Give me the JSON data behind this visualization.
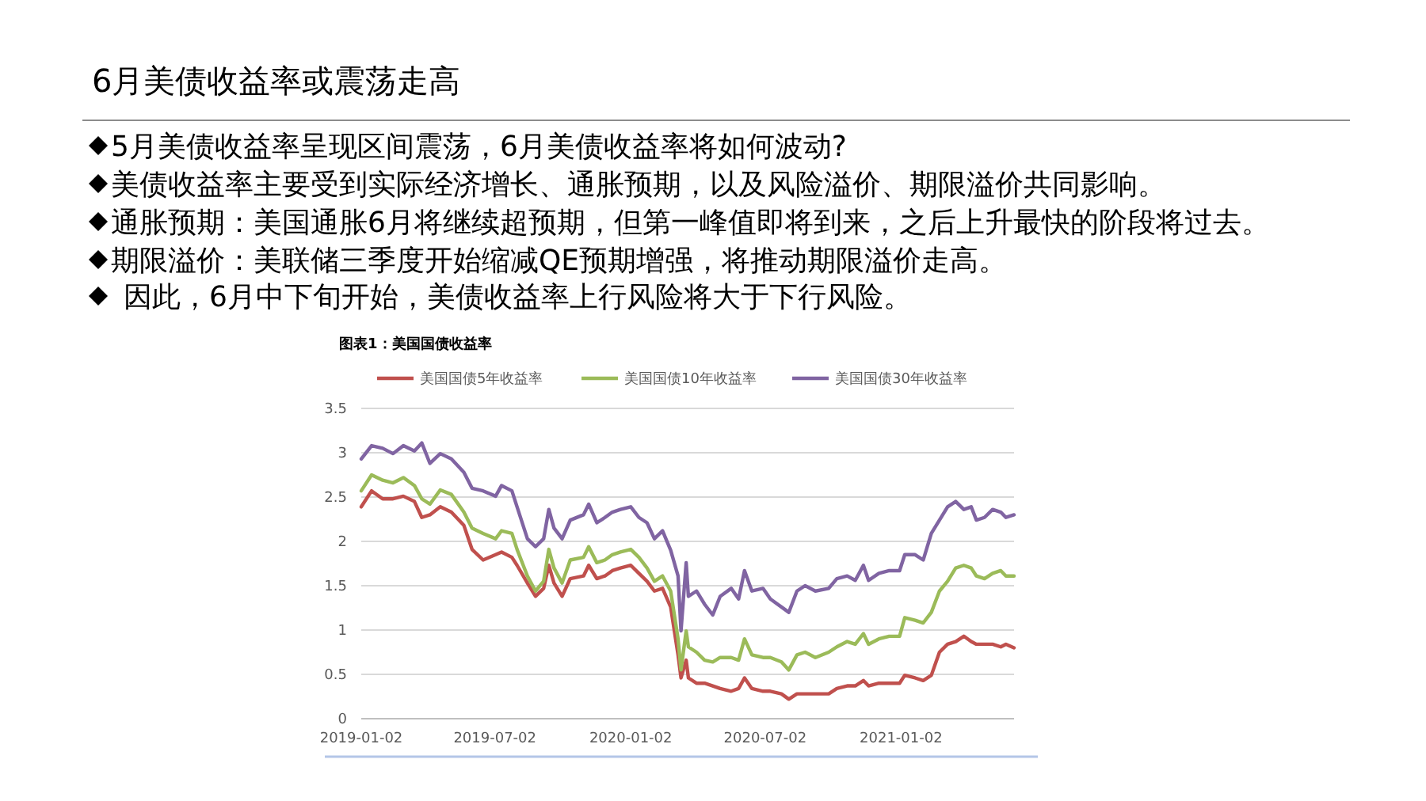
{
  "chart_data": {
    "type": "line",
    "title": "6月美债收益率或震荡走高",
    "subtitle": "图表1：美国国债收益率",
    "annotations": [
      "5月美债收益率呈现区间震荡，6月美债收益率将如何波动?",
      "美债收益率主要受到实际经济增长、通胀预期，以及风险溢价、期限溢价共同影响。",
      "通胀预期：美国通胀6月将继续超预期，但第一峰值即将到来，之后上升最快的阶段将过去。",
      "期限溢价：美联储三季度开始缩减QE预期增强，将推动期限溢价走高。",
      "因此，6月中下旬开始，美债收益率上行风险将大于下行风险。"
    ],
    "x": [
      "2019-01-02",
      "2019-01-16",
      "2019-01-31",
      "2019-02-14",
      "2019-02-28",
      "2019-03-15",
      "2019-03-25",
      "2019-04-05",
      "2019-04-19",
      "2019-05-04",
      "2019-05-21",
      "2019-06-01",
      "2019-06-16",
      "2019-07-03",
      "2019-07-11",
      "2019-07-25",
      "2019-08-01",
      "2019-08-15",
      "2019-08-26",
      "2019-09-06",
      "2019-09-13",
      "2019-09-20",
      "2019-10-01",
      "2019-10-12",
      "2019-10-30",
      "2019-11-06",
      "2019-11-17",
      "2019-11-28",
      "2019-12-08",
      "2019-12-19",
      "2020-01-02",
      "2020-01-13",
      "2020-01-24",
      "2020-02-03",
      "2020-02-14",
      "2020-02-25",
      "2020-03-06",
      "2020-03-10",
      "2020-03-17",
      "2020-03-20",
      "2020-03-31",
      "2020-04-11",
      "2020-04-22",
      "2020-05-02",
      "2020-05-17",
      "2020-05-27",
      "2020-06-04",
      "2020-06-14",
      "2020-06-29",
      "2020-07-09",
      "2020-07-24",
      "2020-08-03",
      "2020-08-14",
      "2020-08-25",
      "2020-09-08",
      "2020-09-26",
      "2020-10-07",
      "2020-10-21",
      "2020-11-01",
      "2020-11-12",
      "2020-11-19",
      "2020-12-03",
      "2020-12-17",
      "2020-12-31",
      "2021-01-07",
      "2021-01-21",
      "2021-02-01",
      "2021-02-12",
      "2021-02-23",
      "2021-03-06",
      "2021-03-17",
      "2021-03-28",
      "2021-04-07",
      "2021-04-14",
      "2021-04-25",
      "2021-05-06",
      "2021-05-17",
      "2021-05-24",
      "2021-06-04"
    ],
    "series": [
      {
        "name": "美国国债5年收益率",
        "color": "#c0504d",
        "values": [
          2.39,
          2.57,
          2.48,
          2.48,
          2.51,
          2.45,
          2.27,
          2.3,
          2.39,
          2.33,
          2.18,
          1.91,
          1.79,
          1.85,
          1.88,
          1.82,
          1.73,
          1.53,
          1.38,
          1.47,
          1.73,
          1.53,
          1.38,
          1.58,
          1.61,
          1.73,
          1.58,
          1.61,
          1.67,
          1.7,
          1.73,
          1.64,
          1.55,
          1.44,
          1.47,
          1.26,
          0.72,
          0.46,
          0.66,
          0.46,
          0.4,
          0.4,
          0.37,
          0.34,
          0.31,
          0.34,
          0.46,
          0.34,
          0.31,
          0.31,
          0.28,
          0.22,
          0.28,
          0.28,
          0.28,
          0.28,
          0.34,
          0.37,
          0.37,
          0.43,
          0.37,
          0.4,
          0.4,
          0.4,
          0.49,
          0.46,
          0.43,
          0.49,
          0.75,
          0.84,
          0.87,
          0.93,
          0.87,
          0.84,
          0.84,
          0.84,
          0.81,
          0.84,
          0.8
        ]
      },
      {
        "name": "美国国债10年收益率",
        "color": "#9bbb59",
        "values": [
          2.57,
          2.75,
          2.69,
          2.66,
          2.72,
          2.63,
          2.48,
          2.42,
          2.58,
          2.53,
          2.33,
          2.15,
          2.09,
          2.03,
          2.12,
          2.09,
          1.91,
          1.61,
          1.44,
          1.55,
          1.91,
          1.7,
          1.53,
          1.79,
          1.82,
          1.94,
          1.76,
          1.79,
          1.85,
          1.88,
          1.91,
          1.82,
          1.7,
          1.55,
          1.61,
          1.44,
          0.9,
          0.55,
          0.99,
          0.81,
          0.75,
          0.66,
          0.64,
          0.69,
          0.69,
          0.66,
          0.9,
          0.72,
          0.69,
          0.69,
          0.64,
          0.55,
          0.72,
          0.75,
          0.69,
          0.75,
          0.81,
          0.87,
          0.84,
          0.96,
          0.84,
          0.9,
          0.93,
          0.93,
          1.14,
          1.11,
          1.08,
          1.2,
          1.44,
          1.55,
          1.7,
          1.73,
          1.7,
          1.61,
          1.58,
          1.64,
          1.67,
          1.61,
          1.61
        ]
      },
      {
        "name": "美国国债30年收益率",
        "color": "#8064a2",
        "values": [
          2.93,
          3.08,
          3.05,
          2.99,
          3.08,
          3.02,
          3.11,
          2.88,
          2.99,
          2.93,
          2.78,
          2.6,
          2.57,
          2.51,
          2.63,
          2.57,
          2.39,
          2.03,
          1.94,
          2.03,
          2.36,
          2.15,
          2.03,
          2.24,
          2.3,
          2.42,
          2.21,
          2.27,
          2.33,
          2.36,
          2.39,
          2.27,
          2.21,
          2.03,
          2.12,
          1.9,
          1.61,
          0.99,
          1.76,
          1.38,
          1.44,
          1.29,
          1.17,
          1.38,
          1.47,
          1.35,
          1.67,
          1.44,
          1.47,
          1.35,
          1.26,
          1.2,
          1.44,
          1.5,
          1.44,
          1.47,
          1.58,
          1.61,
          1.56,
          1.73,
          1.56,
          1.64,
          1.67,
          1.67,
          1.85,
          1.85,
          1.79,
          2.09,
          2.24,
          2.39,
          2.45,
          2.36,
          2.39,
          2.24,
          2.27,
          2.36,
          2.33,
          2.27,
          2.3
        ]
      }
    ],
    "xlim": [
      "2019-01-02",
      "2021-06-04"
    ],
    "xticks": [
      "2019-01-02",
      "2019-07-02",
      "2020-01-02",
      "2020-07-02",
      "2021-01-02"
    ],
    "ylim": [
      0,
      3.5
    ],
    "yticks": [
      0,
      0.5,
      1,
      1.5,
      2,
      2.5,
      3,
      3.5
    ],
    "grid": "y",
    "legend": "top",
    "line_style": "solid"
  }
}
